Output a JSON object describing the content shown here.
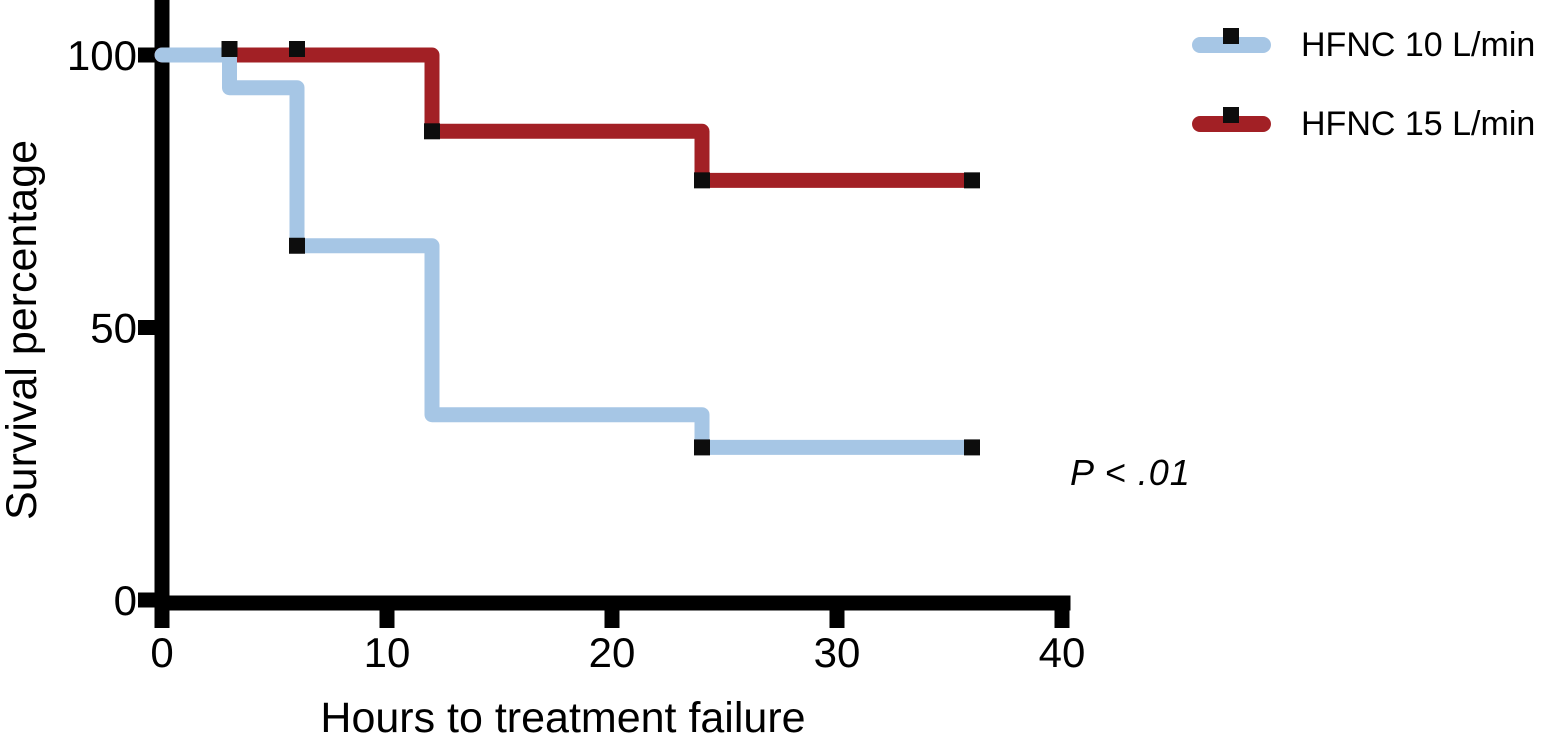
{
  "chart_data": {
    "type": "line",
    "subtype": "kaplan-meier-step",
    "title": "",
    "xlabel": "Hours to treatment failure",
    "ylabel": "Survival percentage",
    "xlim": [
      0,
      40
    ],
    "ylim": [
      0,
      100
    ],
    "xticks": [
      0,
      10,
      20,
      30,
      40
    ],
    "yticks": [
      100,
      50,
      0
    ],
    "grid": false,
    "legend_position": "top-right",
    "axis_color": "#000000",
    "marker": {
      "shape": "square",
      "color": "#0d0d0d",
      "size": 16
    },
    "annotation": {
      "text": "P < .01"
    },
    "series": [
      {
        "name": "HFNC 10 L/min",
        "color": "#a6c6e5",
        "points": [
          {
            "x": 0,
            "y": 100
          },
          {
            "x": 3,
            "y": 94
          },
          {
            "x": 6,
            "y": 65
          },
          {
            "x": 12,
            "y": 34
          },
          {
            "x": 24,
            "y": 28
          },
          {
            "x": 36,
            "y": 28
          }
        ],
        "markers": [
          {
            "x": 6,
            "y": 65
          },
          {
            "x": 24,
            "y": 28
          },
          {
            "x": 36,
            "y": 28
          }
        ]
      },
      {
        "name": "HFNC 15 L/min",
        "color": "#a22025",
        "points": [
          {
            "x": 0,
            "y": 100
          },
          {
            "x": 12,
            "y": 86
          },
          {
            "x": 24,
            "y": 77
          },
          {
            "x": 36,
            "y": 77
          }
        ],
        "markers": [
          {
            "x": 3,
            "y": 100
          },
          {
            "x": 6,
            "y": 100
          },
          {
            "x": 12,
            "y": 86
          },
          {
            "x": 24,
            "y": 77
          },
          {
            "x": 36,
            "y": 77
          }
        ]
      }
    ]
  }
}
